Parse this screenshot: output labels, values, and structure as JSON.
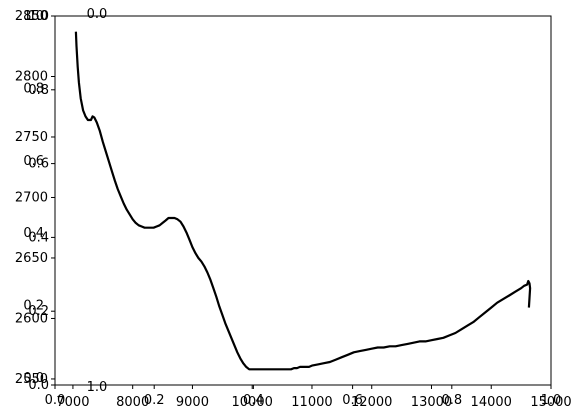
{
  "chart_data": {
    "type": "line",
    "title": "",
    "xlabel": "",
    "ylabel": "",
    "grid": false,
    "legend": "none",
    "line_color": "#000000",
    "frame_color": "#000000",
    "axes_primary": {
      "xlim": [
        6700,
        15000
      ],
      "ylim": [
        2545,
        2850
      ],
      "x_ticks": [
        7000,
        8000,
        9000,
        10000,
        11000,
        12000,
        13000,
        14000,
        15000
      ],
      "y_ticks": [
        2550,
        2600,
        2650,
        2700,
        2750,
        2800,
        2850
      ]
    },
    "axes_overlay": {
      "xlim": [
        0.0,
        1.0
      ],
      "ylim": [
        0.0,
        1.0
      ],
      "x_ticks": [
        0.0,
        0.2,
        0.4,
        0.6,
        0.8,
        1.0
      ],
      "y_ticks": [
        0.0,
        0.2,
        0.4,
        0.6,
        0.8,
        1.0
      ]
    },
    "axes_inner": {
      "xlim": [
        0.0,
        1.0
      ],
      "ylim": [
        0.0,
        1.0
      ],
      "x_ticks": [
        0.0,
        0.2,
        0.4,
        0.6,
        0.8,
        1.0
      ],
      "y_ticks": [
        0.0,
        0.2,
        0.4,
        0.6,
        0.8,
        1.0
      ]
    },
    "x_tick_labels": [
      "7000",
      "8000",
      "9000",
      "10000",
      "11000",
      "12000",
      "13000",
      "14000",
      "15000"
    ],
    "y_tick_labels": [
      "2550",
      "2600",
      "2650",
      "2700",
      "2750",
      "2800",
      "2850"
    ],
    "overlay_tick_labels": [
      "0.0",
      "0.2",
      "0.4",
      "0.6",
      "0.8",
      "1.0"
    ],
    "top_stray_label": "0.0",
    "bottom_stray_label": "1.0",
    "series": [
      {
        "x": [
          7050,
          7060,
          7080,
          7100,
          7130,
          7170,
          7210,
          7250,
          7300,
          7330,
          7360,
          7400,
          7450,
          7500,
          7550,
          7600,
          7650,
          7700,
          7750,
          7800,
          7850,
          7900,
          7950,
          8000,
          8050,
          8100,
          8150,
          8200,
          8250,
          8300,
          8350,
          8400,
          8450,
          8500,
          8550,
          8600,
          8650,
          8700,
          8750,
          8800,
          8850,
          8900,
          8950,
          9000,
          9050,
          9100,
          9150,
          9200,
          9250,
          9300,
          9350,
          9400,
          9450,
          9500,
          9550,
          9600,
          9650,
          9700,
          9750,
          9800,
          9850,
          9900,
          9950,
          10000,
          10050,
          10100,
          10150,
          10200,
          10250,
          10300,
          10350,
          10400,
          10450,
          10500,
          10550,
          10600,
          10650,
          10700,
          10750,
          10800,
          10850,
          10900,
          10950,
          11000,
          11100,
          11200,
          11300,
          11400,
          11500,
          11600,
          11700,
          11800,
          11900,
          12000,
          12100,
          12200,
          12300,
          12400,
          12500,
          12600,
          12700,
          12800,
          12900,
          13000,
          13100,
          13200,
          13300,
          13400,
          13500,
          13600,
          13700,
          13800,
          13900,
          14000,
          14100,
          14200,
          14300,
          14400,
          14500,
          14550,
          14600,
          14620,
          14640,
          14650,
          14640,
          14630
        ],
        "y": [
          2837,
          2825,
          2808,
          2795,
          2782,
          2772,
          2767,
          2764,
          2764,
          2767,
          2766,
          2762,
          2755,
          2746,
          2738,
          2730,
          2722,
          2714,
          2707,
          2701,
          2695,
          2690,
          2686,
          2682,
          2679,
          2677,
          2676,
          2675,
          2675,
          2675,
          2675,
          2676,
          2677,
          2679,
          2681,
          2683,
          2683,
          2683,
          2682,
          2680,
          2676,
          2671,
          2665,
          2659,
          2654,
          2650,
          2647,
          2643,
          2638,
          2632,
          2625,
          2618,
          2610,
          2603,
          2596,
          2590,
          2584,
          2578,
          2572,
          2567,
          2563,
          2560,
          2558,
          2558,
          2558,
          2558,
          2558,
          2558,
          2558,
          2558,
          2558,
          2558,
          2558,
          2558,
          2558,
          2558,
          2558,
          2559,
          2559,
          2560,
          2560,
          2560,
          2560,
          2561,
          2562,
          2563,
          2564,
          2566,
          2568,
          2570,
          2572,
          2573,
          2574,
          2575,
          2576,
          2576,
          2577,
          2577,
          2578,
          2579,
          2580,
          2581,
          2581,
          2582,
          2583,
          2584,
          2586,
          2588,
          2591,
          2594,
          2597,
          2601,
          2605,
          2609,
          2613,
          2616,
          2619,
          2622,
          2625,
          2627,
          2628,
          2631,
          2629,
          2625,
          2617,
          2609
        ]
      }
    ]
  }
}
